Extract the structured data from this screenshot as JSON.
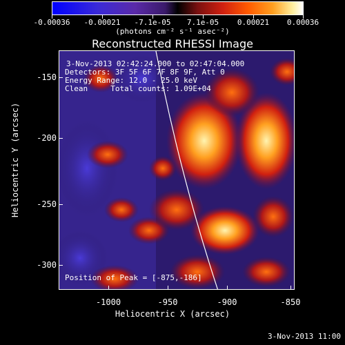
{
  "colorbar": {
    "ticks": [
      "-0.00036",
      "-0.00021",
      "-7.1e-05",
      "7.1e-05",
      "0.00021",
      "0.00036"
    ],
    "units": "(photons cm⁻² s⁻¹ asec⁻²)"
  },
  "title": "Reconstructed RHESSI Image",
  "overlay": {
    "time_range": "3-Nov-2013 02:42:24.000 to 02:47:04.000",
    "detectors": "Detectors: 3F 5F 6F 7F 8F 9F, Att 0",
    "energy": "Energy Range: 12.0 - 25.0 keV",
    "clean": "Clean     Total counts: 1.09E+04",
    "peak": "Position of Peak = [-875,-186]"
  },
  "axes": {
    "ylabel": "Heliocentric Y (arcsec)",
    "xlabel": "Heliocentric X (arcsec)",
    "yticks": [
      "-150",
      "-200",
      "-250",
      "-300"
    ],
    "xticks": [
      "-1000",
      "-950",
      "-900",
      "-850"
    ]
  },
  "datestamp": "3-Nov-2013 11:00"
}
